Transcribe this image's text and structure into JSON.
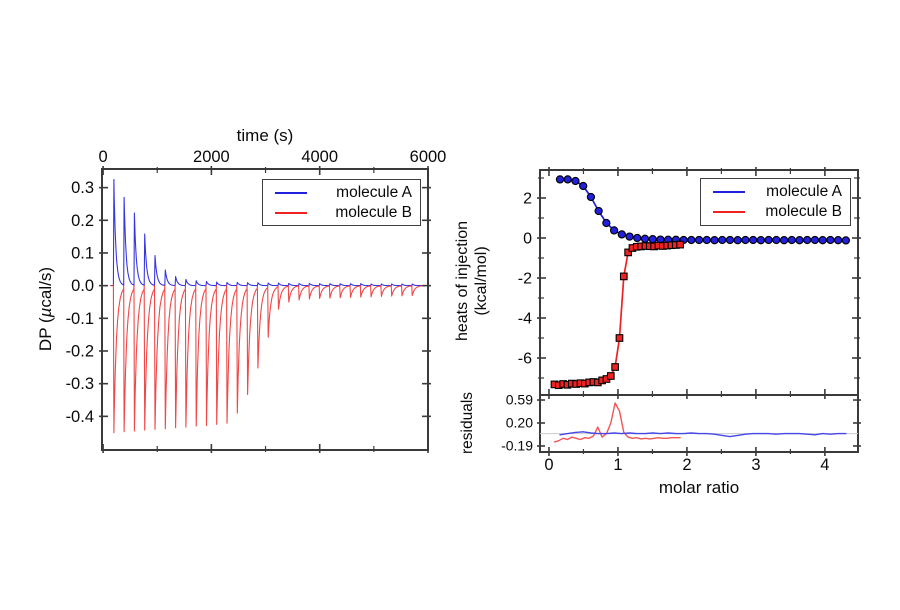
{
  "figure": {
    "background": "#ffffff",
    "frame_color": "#3a3a3a",
    "text_color": "#0a0a0a"
  },
  "legend": {
    "items": [
      {
        "label": "molecule A",
        "color": "#2020dd"
      },
      {
        "label": "molecule B",
        "color": "#ee2222"
      }
    ]
  },
  "chart_data": [
    {
      "id": "thermogram",
      "type": "line",
      "xlabel": "time (s)",
      "ylabel": "DP (µcal/s)",
      "ylabel_parts": {
        "pre": "DP (",
        "mu": "µ",
        "post": "cal/s)"
      },
      "xlim": [
        -20,
        6000
      ],
      "ylim": [
        -0.503,
        0.357
      ],
      "x_ticks": {
        "values": [
          0,
          2000,
          4000,
          6000
        ],
        "labels": [
          "0",
          "2000",
          "4000",
          "6000"
        ]
      },
      "x_minor_ticks": [
        1000,
        3000,
        5000
      ],
      "y_ticks": {
        "values": [
          0.3,
          0.2,
          0.1,
          0.0,
          -0.1,
          -0.2,
          -0.3,
          -0.4
        ],
        "labels": [
          "0.3",
          "0.2",
          "0.1",
          "0.0",
          "-0.1",
          "-0.2",
          "-0.3",
          "-0.4"
        ]
      },
      "injections": {
        "start_s": 190,
        "spacing_s": 190,
        "count": 30
      },
      "series": [
        {
          "name": "molecule A",
          "color": "#2020dd",
          "decay_tau_s": 36,
          "peak_amplitudes_ucal_per_s": [
            0.325,
            0.27,
            0.222,
            0.158,
            0.092,
            0.048,
            0.028,
            0.019,
            0.015,
            0.013,
            0.011,
            0.01,
            0.01,
            0.009,
            0.009,
            0.008,
            0.008,
            0.007,
            0.007,
            0.007,
            0.006,
            0.006,
            0.006,
            0.006,
            0.006,
            0.005,
            0.005,
            0.005,
            0.005,
            0.005
          ]
        },
        {
          "name": "molecule B",
          "color": "#ee3333",
          "decay_tau_s": 48,
          "peak_amplitudes_ucal_per_s": [
            -0.45,
            -0.447,
            -0.445,
            -0.442,
            -0.44,
            -0.438,
            -0.435,
            -0.433,
            -0.43,
            -0.428,
            -0.425,
            -0.421,
            -0.39,
            -0.333,
            -0.252,
            -0.158,
            -0.072,
            -0.05,
            -0.044,
            -0.041,
            -0.039,
            -0.038,
            -0.037,
            -0.036,
            -0.035,
            -0.034,
            -0.033,
            -0.032,
            -0.031,
            -0.03
          ]
        }
      ]
    },
    {
      "id": "binding-isotherm",
      "type": "scatter",
      "ylabel_line1": "heats of injection",
      "ylabel_line2": "(kcal/mol)",
      "xlim": [
        -0.13,
        4.48
      ],
      "ylim": [
        -7.85,
        3.4
      ],
      "y_ticks": {
        "values": [
          2,
          0,
          -2,
          -4,
          -6
        ],
        "labels": [
          "2",
          "0",
          "-2",
          "-4",
          "-6"
        ]
      },
      "y_minor_ticks": [
        3,
        1,
        -1,
        -3,
        -5,
        -7
      ],
      "x_ticks": {
        "values": [
          0,
          1,
          2,
          3,
          4
        ]
      },
      "x_minor_ticks": [
        0.5,
        1.5,
        2.5,
        3.5
      ],
      "series": [
        {
          "name": "molecule A",
          "marker": "circle",
          "color": "#2020dd",
          "x_start": 0.16,
          "x_step": 0.112,
          "values": [
            2.93,
            2.93,
            2.85,
            2.6,
            2.05,
            1.35,
            0.75,
            0.38,
            0.18,
            0.07,
            0.0,
            -0.04,
            -0.06,
            -0.08,
            -0.09,
            -0.09,
            -0.1,
            -0.1,
            -0.1,
            -0.1,
            -0.11,
            -0.1,
            -0.1,
            -0.11,
            -0.1,
            -0.1,
            -0.11,
            -0.1,
            -0.1,
            -0.11,
            -0.1,
            -0.11,
            -0.1,
            -0.1,
            -0.11,
            -0.1,
            -0.11,
            -0.12
          ]
        },
        {
          "name": "molecule B",
          "marker": "square",
          "color": "#ee2222",
          "x_start": 0.08,
          "x_step": 0.0628,
          "values": [
            -7.32,
            -7.36,
            -7.3,
            -7.34,
            -7.28,
            -7.3,
            -7.26,
            -7.28,
            -7.22,
            -7.2,
            -7.22,
            -7.12,
            -7.05,
            -6.9,
            -6.45,
            -5.0,
            -1.92,
            -0.72,
            -0.5,
            -0.44,
            -0.42,
            -0.4,
            -0.41,
            -0.42,
            -0.38,
            -0.4,
            -0.38,
            -0.36,
            -0.35,
            -0.33
          ]
        }
      ]
    },
    {
      "id": "residuals",
      "type": "line",
      "ylabel": "residuals",
      "xlabel": "molar ratio",
      "xlim": [
        -0.13,
        4.48
      ],
      "ylim": [
        -0.292,
        0.675
      ],
      "zero_line": {
        "y": 0.02,
        "color": "#cccccc"
      },
      "y_ticks": {
        "values": [
          0.59,
          0.2,
          -0.19
        ],
        "labels": [
          "0.59",
          "0.20",
          "-0.19"
        ]
      },
      "x_ticks": {
        "values": [
          0,
          1,
          2,
          3,
          4
        ],
        "labels": [
          "0",
          "1",
          "2",
          "3",
          "4"
        ]
      },
      "x_minor_ticks": [
        0.5,
        1.5,
        2.5,
        3.5
      ],
      "series": [
        {
          "name": "molecule A",
          "color": "#4747e8",
          "x_start": 0.16,
          "x_step": 0.112,
          "values": [
            0.0,
            0.02,
            0.04,
            0.05,
            0.03,
            0.02,
            0.02,
            0.03,
            0.02,
            0.03,
            0.02,
            0.02,
            0.03,
            0.02,
            0.03,
            0.02,
            0.02,
            0.03,
            0.02,
            0.02,
            0.01,
            -0.01,
            -0.03,
            -0.01,
            0.01,
            0.02,
            0.02,
            0.02,
            0.01,
            0.02,
            0.02,
            0.02,
            0.01,
            0.0,
            0.02,
            0.01,
            0.02,
            0.02
          ]
        },
        {
          "name": "molecule B",
          "color": "#f25555",
          "x_start": 0.08,
          "x_step": 0.0628,
          "values": [
            -0.12,
            -0.1,
            -0.06,
            -0.08,
            -0.04,
            -0.06,
            -0.08,
            -0.05,
            -0.06,
            -0.02,
            0.13,
            -0.04,
            0.02,
            0.2,
            0.54,
            0.4,
            0.04,
            -0.04,
            -0.06,
            -0.05,
            -0.07,
            -0.06,
            -0.07,
            -0.06,
            -0.05,
            -0.06,
            -0.06,
            -0.05,
            -0.05,
            -0.05
          ]
        }
      ]
    }
  ]
}
